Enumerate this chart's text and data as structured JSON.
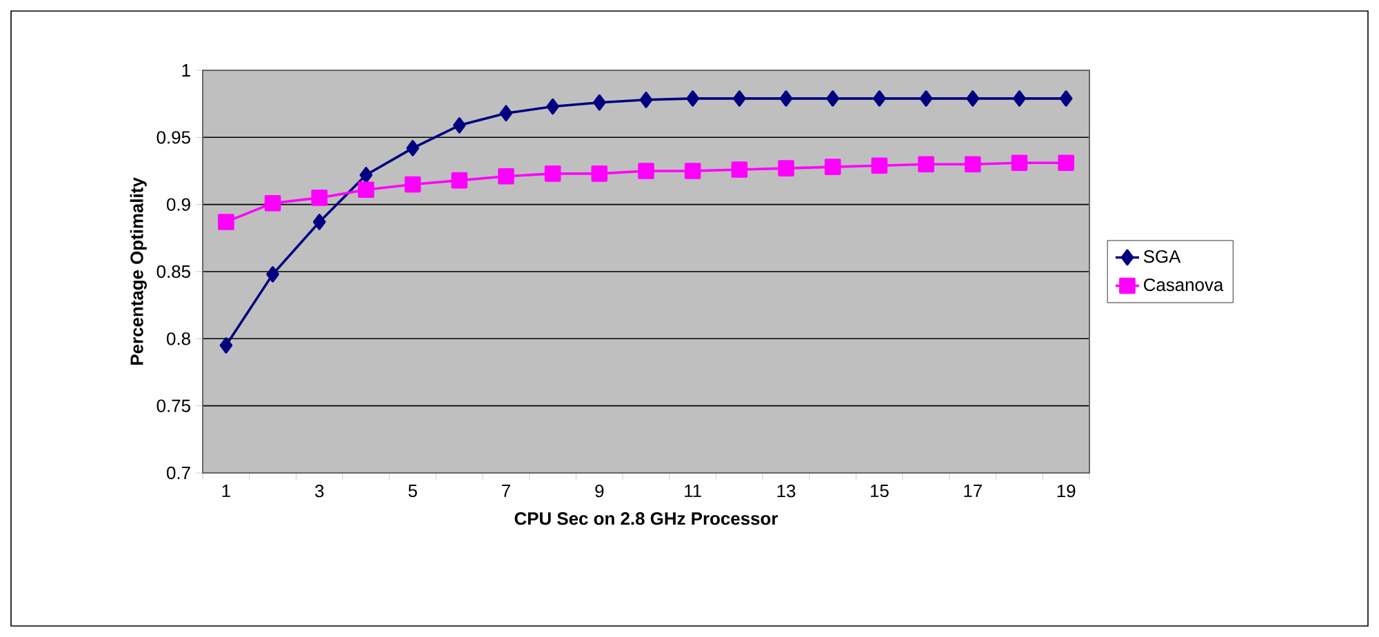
{
  "chart_data": {
    "type": "line",
    "xlabel": "CPU Sec on 2.8 GHz Processor",
    "ylabel": "Percentage Optimality",
    "categories": [
      "1",
      null,
      "3",
      null,
      "5",
      null,
      "7",
      null,
      "9",
      null,
      "11",
      null,
      "13",
      null,
      "15",
      null,
      "17",
      null,
      "19"
    ],
    "series": [
      {
        "name": "SGA",
        "color": "#000080",
        "marker": "diamond",
        "values": [
          0.795,
          0.848,
          0.887,
          0.922,
          0.942,
          0.959,
          0.968,
          0.973,
          0.976,
          0.978,
          0.979,
          0.979,
          0.979,
          0.979,
          0.979,
          0.979,
          0.979,
          0.979,
          0.979
        ]
      },
      {
        "name": "Casanova",
        "color": "#ff00ff",
        "marker": "square",
        "values": [
          0.887,
          0.901,
          0.905,
          0.911,
          0.915,
          0.918,
          0.921,
          0.923,
          0.923,
          0.925,
          0.925,
          0.926,
          0.927,
          0.928,
          0.929,
          0.93,
          0.93,
          0.931,
          0.931
        ]
      }
    ],
    "ylim": [
      0.7,
      1
    ],
    "yticks": [
      {
        "value": 0.7,
        "label": "0.7"
      },
      {
        "value": 0.75,
        "label": "0.75"
      },
      {
        "value": 0.8,
        "label": "0.8"
      },
      {
        "value": 0.85,
        "label": "0.85"
      },
      {
        "value": 0.9,
        "label": "0.9"
      },
      {
        "value": 0.95,
        "label": "0.95"
      },
      {
        "value": 1,
        "label": "1"
      }
    ],
    "grid": "y",
    "legend": "right"
  }
}
